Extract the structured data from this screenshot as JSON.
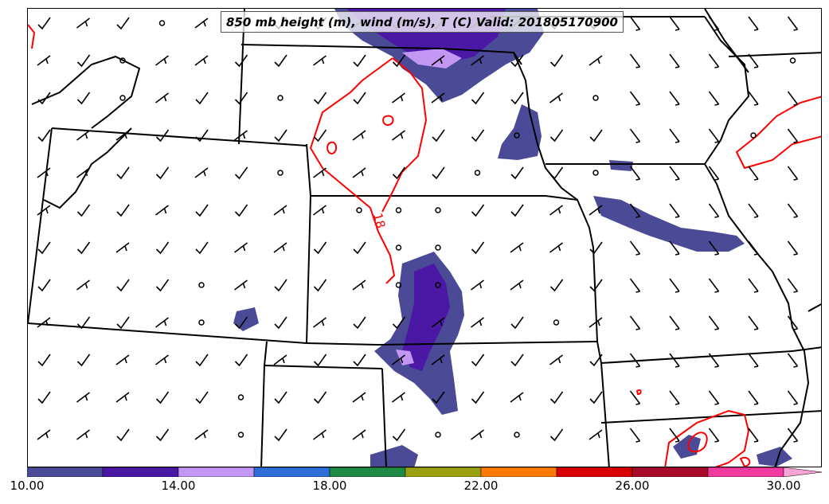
{
  "title": "850 mb height (m), wind (m/s), T (C) Valid: 201805170900",
  "contour_label": "18",
  "colorbar": {
    "labels": [
      "10.00",
      "14.00",
      "18.00",
      "22.00",
      "26.00",
      "30.00"
    ],
    "bins": [
      {
        "from": 10,
        "to": 12,
        "color": "#4a4a96"
      },
      {
        "from": 12,
        "to": 14,
        "color": "#4b18a6"
      },
      {
        "from": 14,
        "to": 16,
        "color": "#c597f5"
      },
      {
        "from": 16,
        "to": 18,
        "color": "#2f6ed8"
      },
      {
        "from": 18,
        "to": 20,
        "color": "#1f8a46"
      },
      {
        "from": 20,
        "to": 22,
        "color": "#9aa012"
      },
      {
        "from": 22,
        "to": 24,
        "color": "#ff7a00"
      },
      {
        "from": 24,
        "to": 26,
        "color": "#d60000"
      },
      {
        "from": 26,
        "to": 28,
        "color": "#a80a2a"
      },
      {
        "from": 28,
        "to": 30,
        "color": "#f03aa0"
      }
    ],
    "extend_color": "#f7a3d6"
  },
  "colors": {
    "temperature_contour": "#ff0000",
    "state_borders": "#000000",
    "wind_barbs": "#000000"
  }
}
